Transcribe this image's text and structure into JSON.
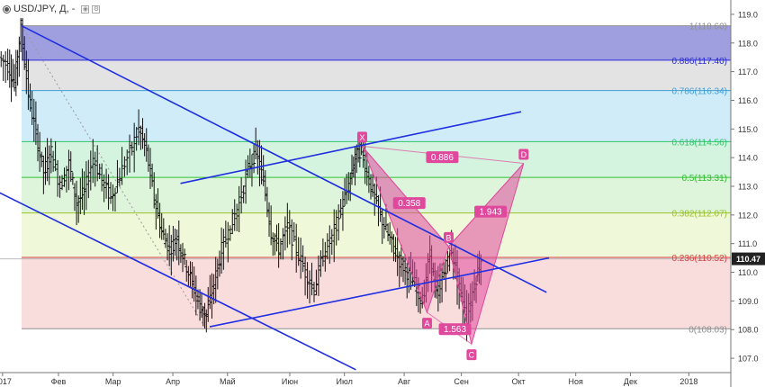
{
  "header": {
    "symbol": "USD/JPY, Д, -",
    "icons": [
      "eye-icon",
      "settings-icon"
    ]
  },
  "price_badge": {
    "label": "110.47",
    "bg": "#222222",
    "fg": "#ffffff"
  },
  "chart_data": {
    "type": "candlestick",
    "title": "USD/JPY, Д, -",
    "xlabel": "",
    "ylabel": "",
    "ylim": [
      106.5,
      119.5
    ],
    "y_ticks": [
      107.0,
      108.0,
      109.0,
      110.0,
      111.0,
      112.0,
      113.0,
      114.0,
      115.0,
      116.0,
      117.0,
      118.0,
      119.0
    ],
    "x_ticks": [
      {
        "label": "2017",
        "t": 0.2
      },
      {
        "label": "Фев",
        "t": 4.6
      },
      {
        "label": "Мар",
        "t": 8.9
      },
      {
        "label": "Апр",
        "t": 13.6
      },
      {
        "label": "Май",
        "t": 17.9
      },
      {
        "label": "Июн",
        "t": 22.8
      },
      {
        "label": "Июл",
        "t": 27.1
      },
      {
        "label": "Авг",
        "t": 31.8
      },
      {
        "label": "Сен",
        "t": 36.3
      },
      {
        "label": "Окт",
        "t": 40.8
      },
      {
        "label": "Ноя",
        "t": 45.3
      },
      {
        "label": "Дек",
        "t": 49.6
      },
      {
        "label": "2018",
        "t": 54.2
      }
    ],
    "last_price": 110.47,
    "price_series": [
      {
        "t": 0.0,
        "p": 117.5
      },
      {
        "t": 0.7,
        "p": 117.2
      },
      {
        "t": 1.2,
        "p": 116.6
      },
      {
        "t": 1.7,
        "p": 118.6
      },
      {
        "t": 2.3,
        "p": 116.2
      },
      {
        "t": 2.9,
        "p": 114.8
      },
      {
        "t": 3.5,
        "p": 113.5
      },
      {
        "t": 4.1,
        "p": 114.2
      },
      {
        "t": 4.8,
        "p": 113.0
      },
      {
        "t": 5.5,
        "p": 113.8
      },
      {
        "t": 6.1,
        "p": 112.4
      },
      {
        "t": 6.7,
        "p": 112.8
      },
      {
        "t": 7.4,
        "p": 114.0
      },
      {
        "t": 8.1,
        "p": 113.2
      },
      {
        "t": 8.8,
        "p": 112.6
      },
      {
        "t": 9.5,
        "p": 113.4
      },
      {
        "t": 10.3,
        "p": 114.2
      },
      {
        "t": 11.0,
        "p": 115.0
      },
      {
        "t": 11.6,
        "p": 114.2
      },
      {
        "t": 12.2,
        "p": 112.6
      },
      {
        "t": 12.8,
        "p": 111.4
      },
      {
        "t": 13.4,
        "p": 110.8
      },
      {
        "t": 14.0,
        "p": 111.2
      },
      {
        "t": 14.6,
        "p": 110.4
      },
      {
        "t": 15.2,
        "p": 109.6
      },
      {
        "t": 15.8,
        "p": 108.8
      },
      {
        "t": 16.3,
        "p": 108.5
      },
      {
        "t": 16.9,
        "p": 109.6
      },
      {
        "t": 17.5,
        "p": 110.8
      },
      {
        "t": 18.2,
        "p": 111.6
      },
      {
        "t": 18.9,
        "p": 112.4
      },
      {
        "t": 19.6,
        "p": 113.6
      },
      {
        "t": 20.2,
        "p": 114.2
      },
      {
        "t": 20.8,
        "p": 113.2
      },
      {
        "t": 21.4,
        "p": 111.4
      },
      {
        "t": 22.0,
        "p": 110.8
      },
      {
        "t": 22.7,
        "p": 111.6
      },
      {
        "t": 23.4,
        "p": 110.8
      },
      {
        "t": 24.1,
        "p": 110.0
      },
      {
        "t": 24.8,
        "p": 109.4
      },
      {
        "t": 25.5,
        "p": 110.6
      },
      {
        "t": 26.2,
        "p": 111.2
      },
      {
        "t": 26.9,
        "p": 112.2
      },
      {
        "t": 27.5,
        "p": 113.0
      },
      {
        "t": 28.0,
        "p": 114.0
      },
      {
        "t": 28.5,
        "p": 114.3
      },
      {
        "t": 29.1,
        "p": 113.2
      },
      {
        "t": 29.7,
        "p": 112.4
      },
      {
        "t": 30.3,
        "p": 111.6
      },
      {
        "t": 30.9,
        "p": 111.0
      },
      {
        "t": 31.5,
        "p": 110.4
      },
      {
        "t": 32.1,
        "p": 110.0
      },
      {
        "t": 32.7,
        "p": 109.6
      },
      {
        "t": 33.3,
        "p": 109.0
      },
      {
        "t": 33.9,
        "p": 110.6
      },
      {
        "t": 34.4,
        "p": 109.2
      },
      {
        "t": 35.0,
        "p": 110.0
      },
      {
        "t": 35.6,
        "p": 110.8
      },
      {
        "t": 36.2,
        "p": 109.4
      },
      {
        "t": 36.8,
        "p": 108.4
      },
      {
        "t": 37.4,
        "p": 109.6
      },
      {
        "t": 37.9,
        "p": 110.47
      }
    ],
    "fibonacci": [
      {
        "ratio": "1",
        "price": 118.6,
        "label": "1(118.60)",
        "color": "#8f8f8f",
        "band": "#7f7fd6"
      },
      {
        "ratio": "0.886",
        "price": 117.4,
        "label": "0.886(117.40)",
        "color": "#2b2bd9",
        "band": "#d9d9d9"
      },
      {
        "ratio": "0.786",
        "price": 116.34,
        "label": "0.786(116.34)",
        "color": "#3fa0d6",
        "band": "#bfe6f5"
      },
      {
        "ratio": "0.618",
        "price": 114.56,
        "label": "0.618(114.56)",
        "color": "#2fc46a",
        "band": "#c7f0d5"
      },
      {
        "ratio": "0.5",
        "price": 113.31,
        "label": "0.5(113.31)",
        "color": "#2fbf2f",
        "band": "#d3f2cf"
      },
      {
        "ratio": "0.382",
        "price": 112.07,
        "label": "0.382(112.07)",
        "color": "#9ac02a",
        "band": "#eaf5cc"
      },
      {
        "ratio": "0.236",
        "price": 110.52,
        "label": "0.236(110.52)",
        "color": "#d64545",
        "band": "#f7d1d1"
      },
      {
        "ratio": "0",
        "price": 108.03,
        "label": "0(108.03)",
        "color": "#8f8f8f",
        "band": null
      }
    ],
    "harmonic_pattern": {
      "points": [
        {
          "name": "X",
          "t": 28.5,
          "p": 114.4
        },
        {
          "name": "A",
          "t": 33.6,
          "p": 108.6
        },
        {
          "name": "B",
          "t": 35.3,
          "p": 110.9
        },
        {
          "name": "C",
          "t": 37.1,
          "p": 107.5
        },
        {
          "name": "D",
          "t": 41.2,
          "p": 113.8
        }
      ],
      "ratios": [
        {
          "value": "0.886",
          "t": 34.8,
          "p": 114.0
        },
        {
          "value": "0.358",
          "t": 32.2,
          "p": 112.4
        },
        {
          "value": "1.943",
          "t": 38.6,
          "p": 112.1
        },
        {
          "value": "1.563",
          "t": 35.8,
          "p": 108.0
        }
      ],
      "color": "#e0489c"
    },
    "trendlines": [
      {
        "from": {
          "t": 1.7,
          "p": 118.6
        },
        "to": {
          "t": 43.0,
          "p": 109.3
        },
        "color": "#1e2ee0"
      },
      {
        "from": {
          "t": -1.5,
          "p": 113.1
        },
        "to": {
          "t": 28.0,
          "p": 106.6
        },
        "color": "#1e2ee0"
      },
      {
        "from": {
          "t": 14.2,
          "p": 113.1
        },
        "to": {
          "t": 41.0,
          "p": 115.6
        },
        "color": "#1e2ee0"
      },
      {
        "from": {
          "t": 16.5,
          "p": 108.1
        },
        "to": {
          "t": 43.2,
          "p": 110.5
        },
        "color": "#1e2ee0"
      }
    ]
  }
}
